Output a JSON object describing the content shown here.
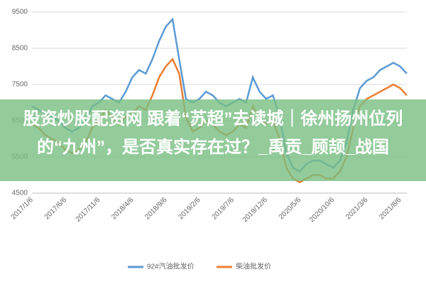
{
  "chart_data": {
    "type": "line",
    "categories": [
      "2017/1/6",
      null,
      null,
      null,
      null,
      "2017/6/6",
      null,
      null,
      null,
      null,
      "2017/11/6",
      null,
      null,
      null,
      null,
      "2018/4/6",
      null,
      null,
      null,
      null,
      "2018/9/6",
      null,
      null,
      null,
      null,
      "2019/2/6",
      null,
      null,
      null,
      null,
      "2019/7/6",
      null,
      null,
      null,
      null,
      "2019/12/6",
      null,
      null,
      null,
      null,
      "2020/5/6",
      null,
      null,
      null,
      null,
      "2020/10/6",
      null,
      null,
      null,
      null,
      "2021/3/6",
      null,
      null,
      null,
      null,
      "2021/8/6",
      null
    ],
    "series": [
      {
        "name": "92#汽油批发价",
        "color": "#5b9bd5",
        "values": [
          6900,
          6800,
          6700,
          6600,
          6500,
          6300,
          6200,
          6300,
          6500,
          6900,
          7000,
          7200,
          7100,
          7000,
          7300,
          7700,
          7900,
          7800,
          8200,
          8700,
          9100,
          9300,
          8200,
          7100,
          7000,
          7100,
          7300,
          7200,
          7000,
          6900,
          7000,
          7100,
          7000,
          7700,
          7300,
          7100,
          7200,
          6600,
          5600,
          5200,
          5100,
          5300,
          5400,
          5400,
          5300,
          5200,
          5400,
          5900,
          6800,
          7400,
          7600,
          7700,
          7900,
          8000,
          8100,
          8000,
          7800
        ]
      },
      {
        "name": "柴油批发价",
        "color": "#ed7d31",
        "values": [
          6400,
          6300,
          6100,
          6000,
          5900,
          5700,
          5600,
          5700,
          5900,
          6300,
          6500,
          6800,
          6600,
          6400,
          6600,
          6700,
          6900,
          6800,
          7200,
          7700,
          8000,
          8200,
          7800,
          6600,
          6200,
          6300,
          6500,
          6400,
          6200,
          6100,
          6200,
          6400,
          6300,
          6900,
          6600,
          6400,
          6500,
          6000,
          5200,
          4900,
          4800,
          4900,
          5000,
          5000,
          4900,
          4900,
          5100,
          5500,
          6300,
          6900,
          7100,
          7200,
          7300,
          7400,
          7500,
          7400,
          7200
        ]
      }
    ],
    "ylim": [
      4500,
      9500
    ],
    "yticks": [
      4500,
      5500,
      6500,
      7500,
      8500,
      9500
    ],
    "grid": true,
    "legend": "bottom"
  },
  "banner": "股资炒股配资网 跟着“苏超”去读城｜徐州扬州位列的“九州”，是否真实存在过？_禹贡_顾颉_战国"
}
